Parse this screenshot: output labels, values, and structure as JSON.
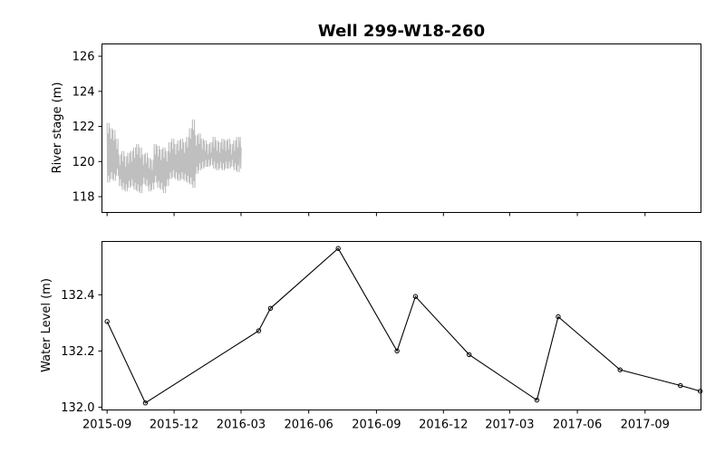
{
  "chart_data": [
    {
      "type": "line",
      "title": "Well 299-W18-260",
      "xlabel": "",
      "ylabel": "River stage (m)",
      "ylim": [
        117.1,
        126.7
      ],
      "yticks": [
        "118",
        "120",
        "122",
        "124",
        "126"
      ],
      "grid": false,
      "series": [
        {
          "color": "#bfbfbf",
          "x": [
            "2015-09-01",
            "2015-09-05",
            "2015-09-09",
            "2015-09-13",
            "2015-09-17",
            "2015-09-21",
            "2015-09-25",
            "2015-09-29",
            "2015-10-03",
            "2015-10-07",
            "2015-10-11",
            "2015-10-15",
            "2015-10-19",
            "2015-10-23",
            "2015-10-27",
            "2015-10-31",
            "2015-11-04",
            "2015-11-08",
            "2015-11-12",
            "2015-11-16",
            "2015-11-20",
            "2015-11-24",
            "2015-11-28",
            "2015-12-02",
            "2015-12-06",
            "2015-12-10",
            "2015-12-14",
            "2015-12-18",
            "2015-12-22",
            "2015-12-26",
            "2015-12-30",
            "2016-01-03",
            "2016-01-07",
            "2016-01-11",
            "2016-01-15",
            "2016-01-19",
            "2016-01-23",
            "2016-01-27",
            "2016-01-31",
            "2016-02-04",
            "2016-02-08",
            "2016-02-12",
            "2016-02-16",
            "2016-02-20",
            "2016-02-24",
            "2016-02-29"
          ],
          "low": [
            118.8,
            119.0,
            118.9,
            119.2,
            118.6,
            118.4,
            118.3,
            118.5,
            118.6,
            118.4,
            118.3,
            118.2,
            118.7,
            118.6,
            118.3,
            118.4,
            118.8,
            118.5,
            118.4,
            118.2,
            118.6,
            119.0,
            119.1,
            119.0,
            118.9,
            119.0,
            118.9,
            118.8,
            118.7,
            118.5,
            119.3,
            119.5,
            119.6,
            119.7,
            119.7,
            119.8,
            119.6,
            119.5,
            119.6,
            119.5,
            119.6,
            119.6,
            119.7,
            119.5,
            119.4,
            119.6
          ],
          "high": [
            122.2,
            121.9,
            121.8,
            121.3,
            120.4,
            120.6,
            120.3,
            120.5,
            120.6,
            120.8,
            121.0,
            120.8,
            120.4,
            120.5,
            120.2,
            120.1,
            121.0,
            120.9,
            120.7,
            120.8,
            120.6,
            121.1,
            121.3,
            121.0,
            121.2,
            121.3,
            121.1,
            121.4,
            121.9,
            122.4,
            121.5,
            121.6,
            121.3,
            121.2,
            121.0,
            121.1,
            121.4,
            121.2,
            121.1,
            121.3,
            121.2,
            121.3,
            121.0,
            121.2,
            121.4,
            121.4
          ]
        }
      ]
    },
    {
      "type": "line",
      "title": "",
      "xlabel": "",
      "ylabel": "Water Level (m)",
      "ylim": [
        131.99,
        132.59
      ],
      "yticks": [
        "132.0",
        "132.2",
        "132.4"
      ],
      "xticks": [
        "2015-09",
        "2015-12",
        "2016-03",
        "2016-06",
        "2016-09",
        "2016-12",
        "2017-03",
        "2017-06",
        "2017-09"
      ],
      "grid": false,
      "series": [
        {
          "color": "#000000",
          "marker": "open-circle",
          "points": [
            {
              "x": "2015-09-01",
              "y": 132.305
            },
            {
              "x": "2015-10-23",
              "y": 132.015
            },
            {
              "x": "2016-03-25",
              "y": 132.272
            },
            {
              "x": "2016-04-10",
              "y": 132.352
            },
            {
              "x": "2016-07-11",
              "y": 132.565
            },
            {
              "x": "2016-09-29",
              "y": 132.2
            },
            {
              "x": "2016-10-24",
              "y": 132.394
            },
            {
              "x": "2017-01-05",
              "y": 132.187
            },
            {
              "x": "2017-04-07",
              "y": 132.025
            },
            {
              "x": "2017-05-06",
              "y": 132.322
            },
            {
              "x": "2017-07-29",
              "y": 132.133
            },
            {
              "x": "2017-10-19",
              "y": 132.077
            },
            {
              "x": "2017-11-15",
              "y": 132.057
            }
          ]
        }
      ]
    }
  ]
}
